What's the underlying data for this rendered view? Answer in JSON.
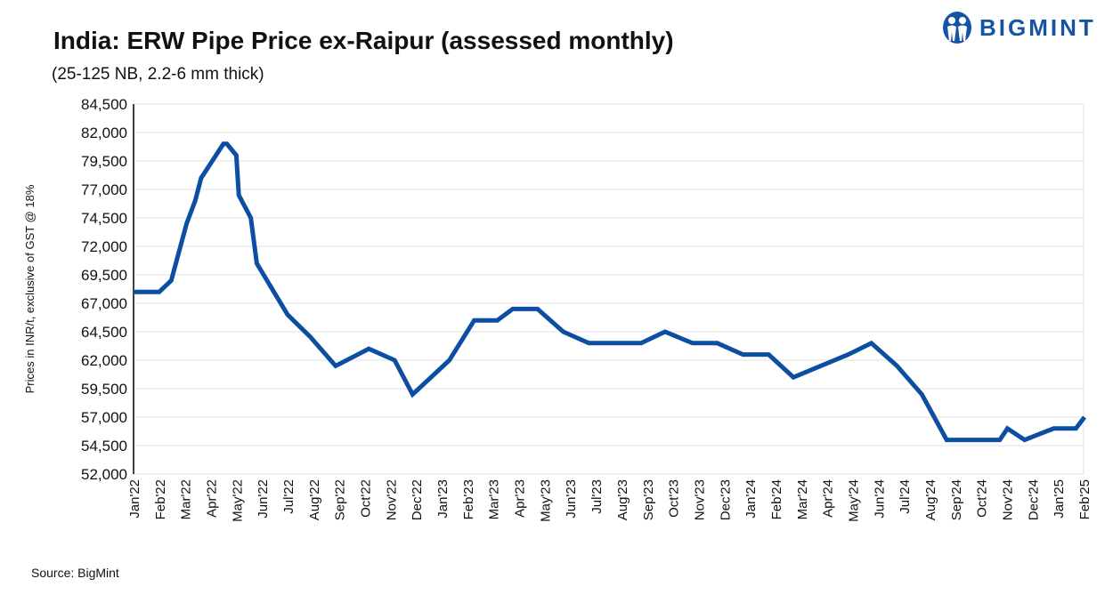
{
  "header": {
    "title": "India: ERW Pipe Price ex-Raipur (assessed monthly)",
    "subtitle": "(25-125 NB, 2.2-6 mm thick)",
    "logo_text": "BIGMINT"
  },
  "footer": {
    "source": "Source: BigMint"
  },
  "colors": {
    "line": "#0b4ea2",
    "grid": "#ececec",
    "logo": "#1553a5"
  },
  "chart_data": {
    "type": "line",
    "title": "India: ERW Pipe Price ex-Raipur (assessed monthly)",
    "subtitle": "(25-125 NB, 2.2-6 mm thick)",
    "xlabel": "",
    "ylabel": "Prices in INR/t, exclusive of GST @ 18%",
    "ylim": [
      52000,
      84500
    ],
    "yticks": [
      52000,
      54500,
      57000,
      59500,
      62000,
      64500,
      67000,
      69500,
      72000,
      74500,
      77000,
      79500,
      82000,
      84500
    ],
    "ytick_labels": [
      "52,000",
      "54,500",
      "57,000",
      "59,500",
      "62,000",
      "64,500",
      "67,000",
      "69,500",
      "72,000",
      "74,500",
      "77,000",
      "79,500",
      "82,000",
      "84,500"
    ],
    "xrange": [
      "2022-01-01",
      "2025-02-01"
    ],
    "xtick_labels": [
      "Jan'22",
      "Feb'22",
      "Mar'22",
      "Apr'22",
      "May'22",
      "Jun'22",
      "Jul'22",
      "Aug'22",
      "Sep'22",
      "Oct'22",
      "Nov'22",
      "Dec'22",
      "Jan'23",
      "Feb'23",
      "Mar'23",
      "Apr'23",
      "May'23",
      "Jun'23",
      "Jul'23",
      "Aug'23",
      "Sep'23",
      "Oct'23",
      "Nov'23",
      "Dec'23",
      "Jan'24",
      "Feb'24",
      "Mar'24",
      "Apr'24",
      "May'24",
      "Jun'24",
      "Jul'24",
      "Aug'24",
      "Sep'24",
      "Oct'24",
      "Nov'24",
      "Dec'24",
      "Jan'25",
      "Feb'25"
    ],
    "grid": true,
    "legend": "none",
    "series": [
      {
        "points": [
          [
            "2022-01-01",
            68000
          ],
          [
            "2022-02-01",
            68000
          ],
          [
            "2022-02-15",
            69000
          ],
          [
            "2022-03-03",
            74000
          ],
          [
            "2022-03-13",
            76000
          ],
          [
            "2022-03-20",
            78000
          ],
          [
            "2022-04-16",
            81000
          ],
          [
            "2022-04-20",
            81000
          ],
          [
            "2022-05-01",
            80000
          ],
          [
            "2022-05-04",
            76500
          ],
          [
            "2022-05-18",
            74500
          ],
          [
            "2022-05-25",
            70500
          ],
          [
            "2022-06-15",
            68000
          ],
          [
            "2022-07-01",
            66000
          ],
          [
            "2022-07-28",
            64000
          ],
          [
            "2022-08-27",
            61500
          ],
          [
            "2022-10-06",
            63000
          ],
          [
            "2022-11-06",
            62000
          ],
          [
            "2022-11-27",
            59000
          ],
          [
            "2023-01-10",
            62000
          ],
          [
            "2023-02-09",
            65500
          ],
          [
            "2023-03-06",
            65500
          ],
          [
            "2023-03-24",
            66500
          ],
          [
            "2023-04-23",
            66500
          ],
          [
            "2023-05-23",
            64500
          ],
          [
            "2023-06-23",
            63500
          ],
          [
            "2023-08-24",
            63500
          ],
          [
            "2023-09-22",
            64500
          ],
          [
            "2023-10-24",
            63500
          ],
          [
            "2023-11-23",
            63500
          ],
          [
            "2023-12-23",
            62500
          ],
          [
            "2024-01-23",
            62500
          ],
          [
            "2024-02-22",
            60500
          ],
          [
            "2024-04-26",
            62500
          ],
          [
            "2024-05-23",
            63500
          ],
          [
            "2024-06-23",
            61500
          ],
          [
            "2024-07-22",
            59000
          ],
          [
            "2024-08-21",
            55000
          ],
          [
            "2024-10-23",
            55000
          ],
          [
            "2024-11-02",
            56000
          ],
          [
            "2024-11-22",
            55000
          ],
          [
            "2024-12-26",
            56000
          ],
          [
            "2025-01-22",
            56000
          ],
          [
            "2025-02-02",
            57000
          ]
        ]
      }
    ]
  }
}
